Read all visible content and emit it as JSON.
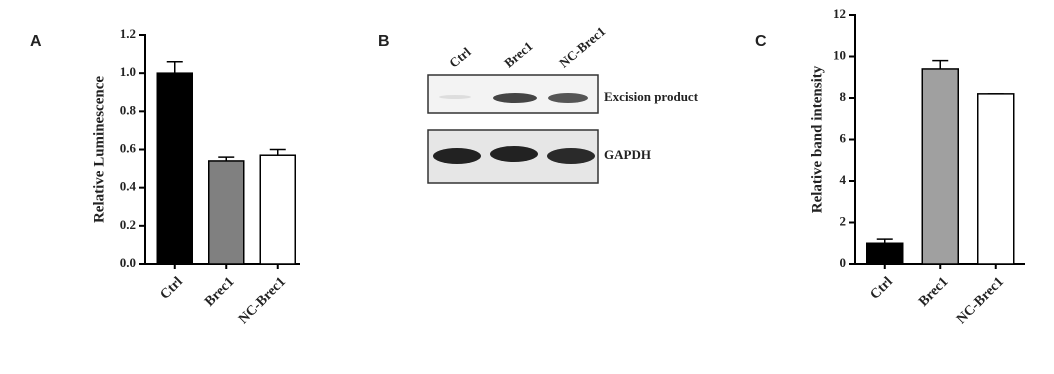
{
  "chart_data": [
    {
      "type": "bar",
      "panel": "A",
      "ylabel": "Relative Luminescence",
      "categories": [
        "Ctrl",
        "Brec1",
        "NC-Brec1"
      ],
      "values": [
        1.0,
        0.54,
        0.57
      ],
      "errors": [
        0.06,
        0.02,
        0.03
      ],
      "colors": [
        "#000000",
        "#808080",
        "#ffffff"
      ],
      "ylim": [
        0,
        1.2
      ],
      "yticks": [
        {
          "value": 0,
          "label": "0.0"
        },
        0.2,
        0.4,
        0.6,
        0.8,
        {
          "value": 1.0,
          "label": "1.0"
        },
        1.2
      ]
    },
    {
      "type": "bar",
      "panel": "C",
      "ylabel": "Relative band intensity",
      "categories": [
        "Ctrl",
        "Brec1",
        "NC-Brec1"
      ],
      "values": [
        1.0,
        9.4,
        8.2
      ],
      "errors": [
        0.2,
        0.4,
        0
      ],
      "colors": [
        "#000000",
        "#a0a0a0",
        "#ffffff"
      ],
      "ylim": [
        0,
        12
      ],
      "yticks": [
        0,
        2,
        4,
        6,
        8,
        10,
        12
      ]
    }
  ],
  "blot": {
    "panel": "B",
    "lanes": [
      "Ctrl",
      "Brec1",
      "NC-Brec1"
    ],
    "rows": [
      "Excision product",
      "GAPDH"
    ]
  }
}
